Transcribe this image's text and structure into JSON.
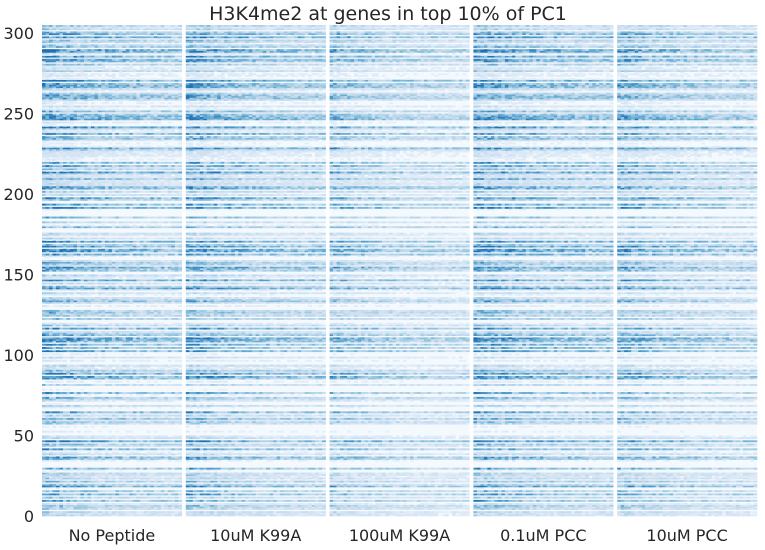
{
  "chart_data": {
    "type": "heatmap",
    "title": "H3K4me2 at genes in top 10% of PC1",
    "xlabel": "",
    "ylabel": "",
    "categories": [
      "No Peptide",
      "10uM K99A",
      "100uM K99A",
      "0.1uM PCC",
      "10uM PCC"
    ],
    "y_ticks": [
      0,
      50,
      100,
      150,
      200,
      250,
      300
    ],
    "ylim": [
      0,
      305
    ],
    "n_rows": 305,
    "bins_per_panel": 40,
    "colormap": [
      "#f7fbff",
      "#deebf7",
      "#c6dbef",
      "#9ecae1",
      "#6baed6",
      "#4292c6",
      "#2171b5"
    ],
    "panel_strength": [
      1.0,
      0.95,
      0.75,
      1.0,
      0.85
    ],
    "grid": false,
    "legend": "none"
  }
}
